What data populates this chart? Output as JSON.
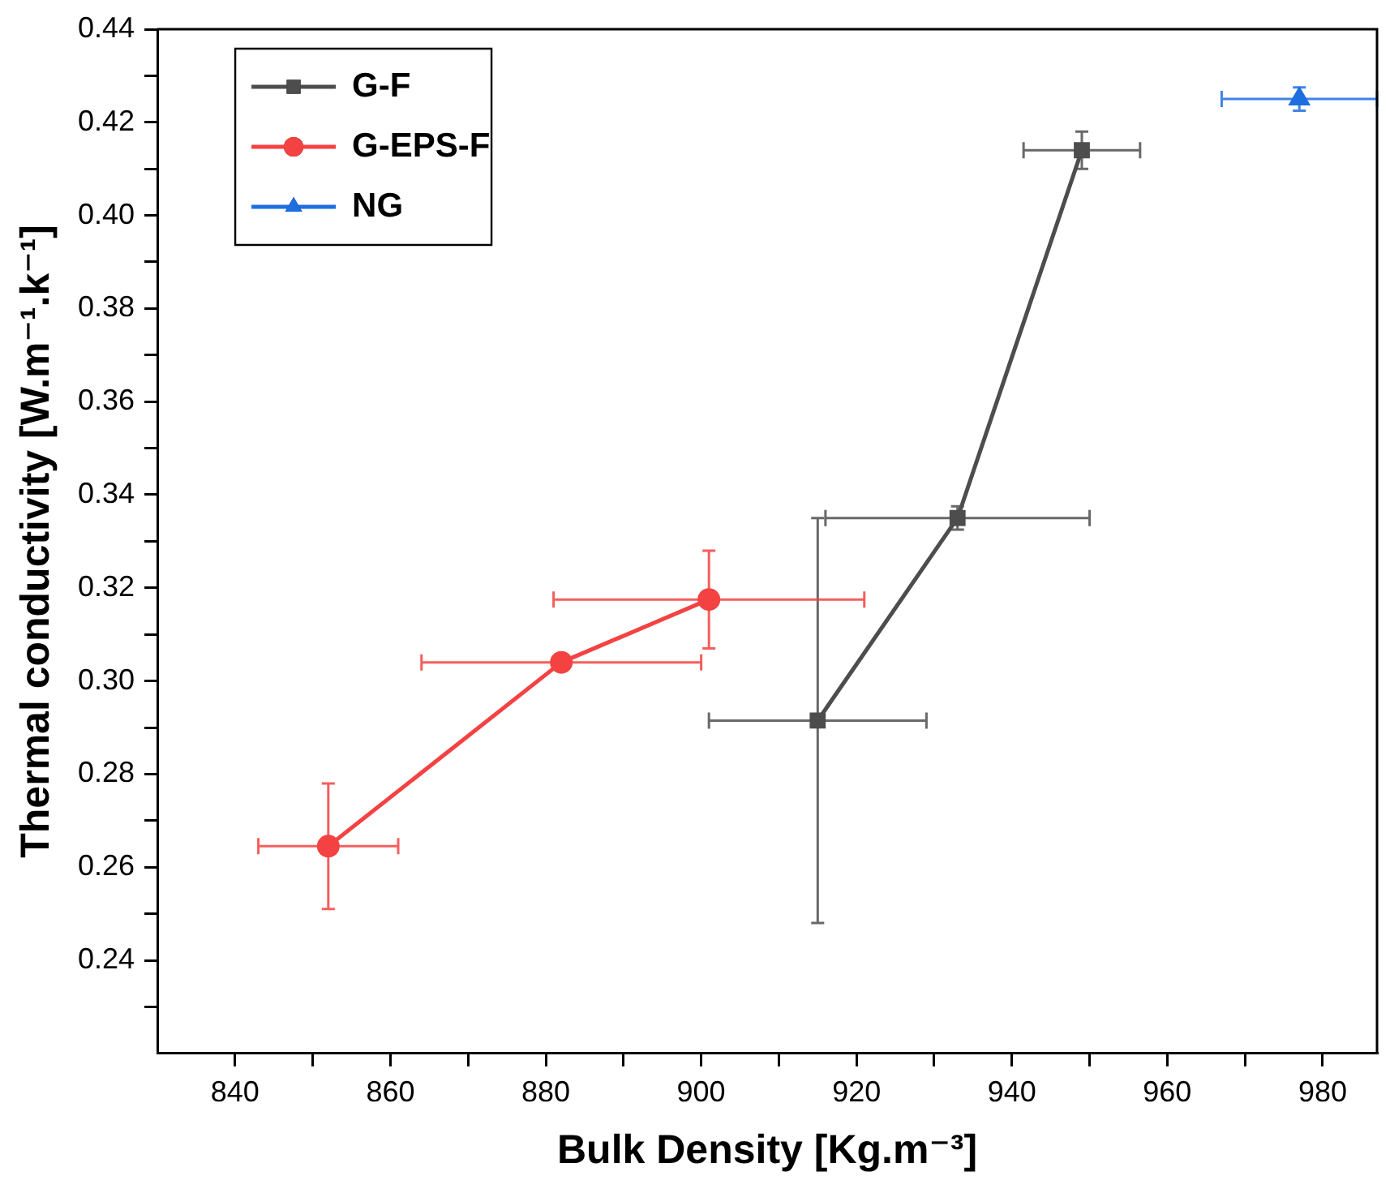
{
  "chart_data": {
    "type": "line",
    "xlabel": "Bulk Density [Kg.m⁻³]",
    "ylabel": "Thermal conductivity [W.m⁻¹.k⁻¹]",
    "xlim": [
      830,
      987
    ],
    "ylim": [
      0.22,
      0.44
    ],
    "xticks": [
      840,
      {
        "value": 850,
        "label": null
      },
      860,
      {
        "value": 870,
        "label": null
      },
      880,
      {
        "value": 890,
        "label": null
      },
      900,
      {
        "value": 910,
        "label": null
      },
      920,
      {
        "value": 930,
        "label": null
      },
      940,
      {
        "value": 950,
        "label": null
      },
      960,
      {
        "value": 970,
        "label": null
      },
      980
    ],
    "yticks": [
      {
        "value": 0.23,
        "label": null
      },
      {
        "value": 0.24,
        "label": "0.24"
      },
      {
        "value": 0.25,
        "label": null
      },
      {
        "value": 0.26,
        "label": "0.26"
      },
      {
        "value": 0.27,
        "label": null
      },
      {
        "value": 0.28,
        "label": "0.28"
      },
      {
        "value": 0.29,
        "label": null
      },
      {
        "value": 0.3,
        "label": "0.30"
      },
      {
        "value": 0.31,
        "label": null
      },
      {
        "value": 0.32,
        "label": "0.32"
      },
      {
        "value": 0.33,
        "label": null
      },
      {
        "value": 0.34,
        "label": "0.34"
      },
      {
        "value": 0.35,
        "label": null
      },
      {
        "value": 0.36,
        "label": "0.36"
      },
      {
        "value": 0.37,
        "label": null
      },
      {
        "value": 0.38,
        "label": "0.38"
      },
      {
        "value": 0.39,
        "label": null
      },
      {
        "value": 0.4,
        "label": "0.40"
      },
      {
        "value": 0.41,
        "label": null
      },
      {
        "value": 0.42,
        "label": "0.42"
      },
      {
        "value": 0.43,
        "label": null
      },
      {
        "value": 0.44,
        "label": "0.44"
      }
    ],
    "grid": false,
    "legend": "top left",
    "series": [
      {
        "name": "G-F",
        "type": "line",
        "marker": "square",
        "color": "#4d4d4d",
        "x": [
          915,
          933,
          949
        ],
        "values": [
          0.2915,
          0.335,
          0.414
        ],
        "errors": [
          0.0435,
          0.0025,
          0.004
        ],
        "xerrors": [
          14,
          17,
          7.5
        ]
      },
      {
        "name": "G-EPS-F",
        "type": "line",
        "marker": "circle",
        "color": "#f44242",
        "x": [
          852,
          882,
          901
        ],
        "values": [
          0.2645,
          0.304,
          0.3175
        ],
        "errors": [
          0.0135,
          null,
          0.0105
        ],
        "xerrors": [
          9,
          18,
          20
        ]
      },
      {
        "name": "NG",
        "type": "scatter",
        "marker": "triangle",
        "color": "#1e6ee0",
        "x": [
          977
        ],
        "values": [
          0.425
        ],
        "errors": [
          0.0025
        ],
        "xerrors": [
          10
        ]
      }
    ]
  }
}
